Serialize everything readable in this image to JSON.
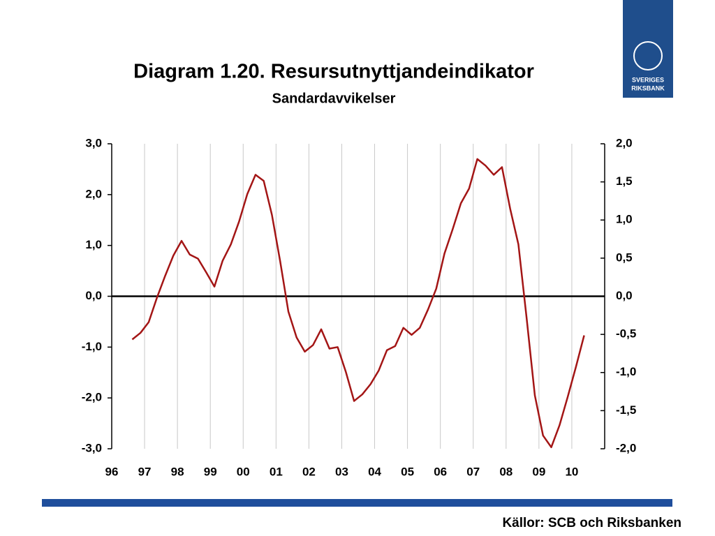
{
  "chart_data": {
    "type": "line",
    "title": "Diagram 1.20. Resursutnyttjandeindikator",
    "subtitle": "Sandardavvikelser",
    "x": [
      1996.625,
      1996.875,
      1997.125,
      1997.375,
      1997.625,
      1997.875,
      1998.125,
      1998.375,
      1998.625,
      1998.875,
      1999.125,
      1999.375,
      1999.625,
      1999.875,
      2000.125,
      2000.375,
      2000.625,
      2000.875,
      2001.125,
      2001.375,
      2001.625,
      2001.875,
      2002.125,
      2002.375,
      2002.625,
      2002.875,
      2003.125,
      2003.375,
      2003.625,
      2003.875,
      2004.125,
      2004.375,
      2004.625,
      2004.875,
      2005.125,
      2005.375,
      2005.625,
      2005.875,
      2006.125,
      2006.375,
      2006.625,
      2006.875,
      2007.125,
      2007.375,
      2007.625,
      2007.875,
      2008.125,
      2008.375,
      2008.625,
      2008.875,
      2009.125,
      2009.375,
      2009.625,
      2009.875,
      2010.125,
      2010.375
    ],
    "series": [
      {
        "color": "#a31515",
        "values": [
          -0.85,
          -0.72,
          -0.51,
          -0.03,
          0.4,
          0.8,
          1.09,
          0.82,
          0.74,
          0.47,
          0.19,
          0.7,
          1.02,
          1.47,
          2.01,
          2.39,
          2.27,
          1.6,
          0.69,
          -0.3,
          -0.81,
          -1.09,
          -0.96,
          -0.65,
          -1.03,
          -1.0,
          -1.49,
          -2.06,
          -1.93,
          -1.73,
          -1.46,
          -1.06,
          -0.98,
          -0.62,
          -0.76,
          -0.62,
          -0.26,
          0.15,
          0.84,
          1.32,
          1.83,
          2.12,
          2.7,
          2.57,
          2.39,
          2.54,
          1.72,
          1.02,
          -0.43,
          -1.95,
          -2.74,
          -2.97,
          -2.54,
          -1.98,
          -1.39,
          -0.77
        ]
      }
    ],
    "xlim": [
      1996,
      2011
    ],
    "xticks": [
      {
        "value": 1996,
        "label": "96"
      },
      {
        "value": 1997,
        "label": "97"
      },
      {
        "value": 1998,
        "label": "98"
      },
      {
        "value": 1999,
        "label": "99"
      },
      {
        "value": 2000,
        "label": "00"
      },
      {
        "value": 2001,
        "label": "01"
      },
      {
        "value": 2002,
        "label": "02"
      },
      {
        "value": 2003,
        "label": "03"
      },
      {
        "value": 2004,
        "label": "04"
      },
      {
        "value": 2005,
        "label": "05"
      },
      {
        "value": 2006,
        "label": "06"
      },
      {
        "value": 2007,
        "label": "07"
      },
      {
        "value": 2008,
        "label": "08"
      },
      {
        "value": 2009,
        "label": "09"
      },
      {
        "value": 2010,
        "label": "10"
      }
    ],
    "ylim": [
      -3,
      3
    ],
    "yticks": [
      {
        "value": 3,
        "label": "3,0"
      },
      {
        "value": 2,
        "label": "2,0"
      },
      {
        "value": 1,
        "label": "1,0"
      },
      {
        "value": 0,
        "label": "0,0"
      },
      {
        "value": -1,
        "label": "-1,0"
      },
      {
        "value": -2,
        "label": "-2,0"
      },
      {
        "value": -3,
        "label": "-3,0"
      }
    ],
    "y2lim": [
      -2,
      2
    ],
    "y2ticks": [
      {
        "value": 2,
        "label": "2,0"
      },
      {
        "value": 1.5,
        "label": "1,5"
      },
      {
        "value": 1,
        "label": "1,0"
      },
      {
        "value": 0.5,
        "label": "0,5"
      },
      {
        "value": 0,
        "label": "0,0"
      },
      {
        "value": -0.5,
        "label": "-0,5"
      },
      {
        "value": -1,
        "label": "-1,0"
      },
      {
        "value": -1.5,
        "label": "-1,5"
      },
      {
        "value": -2,
        "label": "-2,0"
      }
    ],
    "grid": true
  },
  "source": "Källor: SCB och Riksbanken",
  "logo": {
    "line1": "SVERIGES",
    "line2": "RIKSBANK"
  }
}
